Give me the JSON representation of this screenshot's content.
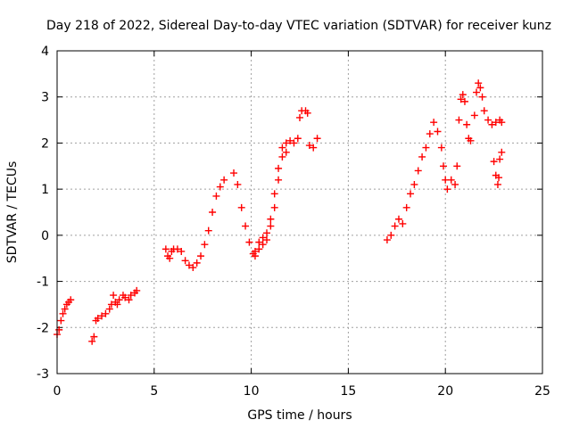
{
  "chart_data": {
    "type": "scatter",
    "title": "Day 218 of 2022, Sidereal Day-to-day VTEC variation (SDTVAR) for receiver kunz",
    "xlabel": "GPS time / hours",
    "ylabel": "SDTVAR / TECUs",
    "xlim": [
      0,
      25
    ],
    "ylim": [
      -3,
      4
    ],
    "xticks": [
      0,
      5,
      10,
      15,
      20,
      25
    ],
    "yticks": [
      -3,
      -2,
      -1,
      0,
      1,
      2,
      3,
      4
    ],
    "xtick_labels": [
      "0",
      "5",
      "10",
      "15",
      "20",
      "25"
    ],
    "ytick_labels": [
      "-3",
      "-2",
      "-1",
      "0",
      "1",
      "2",
      "3",
      "4"
    ],
    "grid": true,
    "marker": "+",
    "color": "#ff0000",
    "series": [
      {
        "points": [
          [
            0.0,
            -2.15
          ],
          [
            0.1,
            -2.05
          ],
          [
            0.2,
            -1.85
          ],
          [
            0.3,
            -1.7
          ],
          [
            0.4,
            -1.6
          ],
          [
            0.5,
            -1.5
          ],
          [
            0.6,
            -1.45
          ],
          [
            0.7,
            -1.4
          ],
          [
            1.8,
            -2.3
          ],
          [
            1.9,
            -2.2
          ],
          [
            2.0,
            -1.85
          ],
          [
            2.1,
            -1.8
          ],
          [
            2.3,
            -1.75
          ],
          [
            2.5,
            -1.7
          ],
          [
            2.7,
            -1.6
          ],
          [
            2.8,
            -1.5
          ],
          [
            2.9,
            -1.3
          ],
          [
            3.0,
            -1.45
          ],
          [
            3.1,
            -1.5
          ],
          [
            3.2,
            -1.4
          ],
          [
            3.4,
            -1.3
          ],
          [
            3.5,
            -1.35
          ],
          [
            3.7,
            -1.4
          ],
          [
            3.8,
            -1.3
          ],
          [
            4.0,
            -1.25
          ],
          [
            4.1,
            -1.2
          ],
          [
            5.6,
            -0.3
          ],
          [
            5.7,
            -0.45
          ],
          [
            5.8,
            -0.5
          ],
          [
            5.9,
            -0.35
          ],
          [
            6.0,
            -0.3
          ],
          [
            6.2,
            -0.3
          ],
          [
            6.4,
            -0.35
          ],
          [
            6.6,
            -0.55
          ],
          [
            6.8,
            -0.65
          ],
          [
            7.0,
            -0.7
          ],
          [
            7.2,
            -0.6
          ],
          [
            7.4,
            -0.45
          ],
          [
            7.6,
            -0.2
          ],
          [
            7.8,
            0.1
          ],
          [
            8.0,
            0.5
          ],
          [
            8.2,
            0.85
          ],
          [
            8.4,
            1.05
          ],
          [
            8.6,
            1.2
          ],
          [
            9.1,
            1.35
          ],
          [
            9.3,
            1.1
          ],
          [
            9.5,
            0.6
          ],
          [
            9.7,
            0.2
          ],
          [
            9.9,
            -0.15
          ],
          [
            10.1,
            -0.4
          ],
          [
            10.2,
            -0.45
          ],
          [
            10.4,
            -0.3
          ],
          [
            10.6,
            -0.2
          ],
          [
            10.8,
            -0.1
          ],
          [
            11.0,
            0.2
          ],
          [
            11.2,
            0.6
          ],
          [
            11.4,
            1.2
          ],
          [
            11.6,
            1.7
          ],
          [
            11.8,
            2.0
          ],
          [
            12.0,
            2.05
          ],
          [
            12.2,
            2.0
          ],
          [
            12.4,
            2.1
          ],
          [
            12.5,
            2.55
          ],
          [
            12.6,
            2.7
          ],
          [
            12.8,
            2.7
          ],
          [
            12.9,
            2.65
          ],
          [
            13.0,
            1.95
          ],
          [
            13.2,
            1.9
          ],
          [
            13.4,
            2.1
          ],
          [
            10.2,
            -0.35
          ],
          [
            10.4,
            -0.15
          ],
          [
            10.6,
            -0.05
          ],
          [
            10.8,
            0.05
          ],
          [
            11.0,
            0.35
          ],
          [
            11.2,
            0.9
          ],
          [
            11.4,
            1.45
          ],
          [
            11.6,
            1.9
          ],
          [
            11.8,
            1.8
          ],
          [
            17.0,
            -0.1
          ],
          [
            17.2,
            0.0
          ],
          [
            17.4,
            0.2
          ],
          [
            17.6,
            0.35
          ],
          [
            17.8,
            0.25
          ],
          [
            18.0,
            0.6
          ],
          [
            18.2,
            0.9
          ],
          [
            18.4,
            1.1
          ],
          [
            18.6,
            1.4
          ],
          [
            18.8,
            1.7
          ],
          [
            19.0,
            1.9
          ],
          [
            19.2,
            2.2
          ],
          [
            19.4,
            2.45
          ],
          [
            19.6,
            2.25
          ],
          [
            19.8,
            1.9
          ],
          [
            19.9,
            1.5
          ],
          [
            20.0,
            1.2
          ],
          [
            20.1,
            1.0
          ],
          [
            20.3,
            1.2
          ],
          [
            20.5,
            1.1
          ],
          [
            20.6,
            1.5
          ],
          [
            20.7,
            2.5
          ],
          [
            20.8,
            2.95
          ],
          [
            20.9,
            3.05
          ],
          [
            21.0,
            2.9
          ],
          [
            21.1,
            2.4
          ],
          [
            21.2,
            2.1
          ],
          [
            21.3,
            2.05
          ],
          [
            21.5,
            2.6
          ],
          [
            21.6,
            3.1
          ],
          [
            21.7,
            3.3
          ],
          [
            21.8,
            3.2
          ],
          [
            21.9,
            3.0
          ],
          [
            22.0,
            2.7
          ],
          [
            22.2,
            2.5
          ],
          [
            22.4,
            2.4
          ],
          [
            22.6,
            2.45
          ],
          [
            22.8,
            2.5
          ],
          [
            22.9,
            2.45
          ],
          [
            22.5,
            1.6
          ],
          [
            22.6,
            1.3
          ],
          [
            22.7,
            1.1
          ],
          [
            22.75,
            1.25
          ],
          [
            22.8,
            1.65
          ],
          [
            22.9,
            1.8
          ]
        ]
      }
    ]
  }
}
